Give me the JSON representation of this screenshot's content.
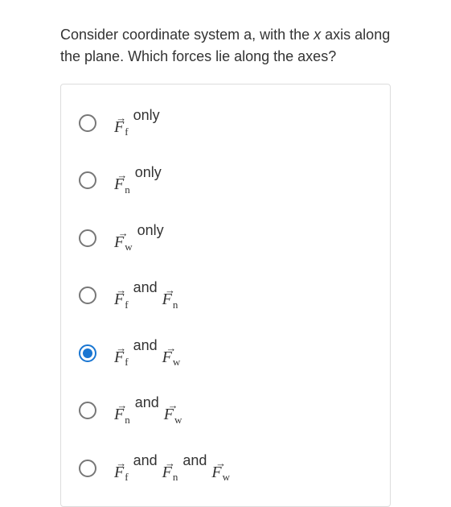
{
  "question": {
    "line1": "Consider coordinate system a, with the ",
    "italic": "x",
    "line2": " axis along the plane. Which forces lie along the axes?"
  },
  "forces": {
    "f": {
      "letter": "F",
      "sub": "f"
    },
    "n": {
      "letter": "F",
      "sub": "n"
    },
    "w": {
      "letter": "F",
      "sub": "w"
    }
  },
  "words": {
    "only": "only",
    "and": "and"
  },
  "selected_index": 4,
  "colors": {
    "accent": "#1976d2",
    "border": "#dddddd",
    "text": "#333333",
    "radio_border": "#777777"
  }
}
